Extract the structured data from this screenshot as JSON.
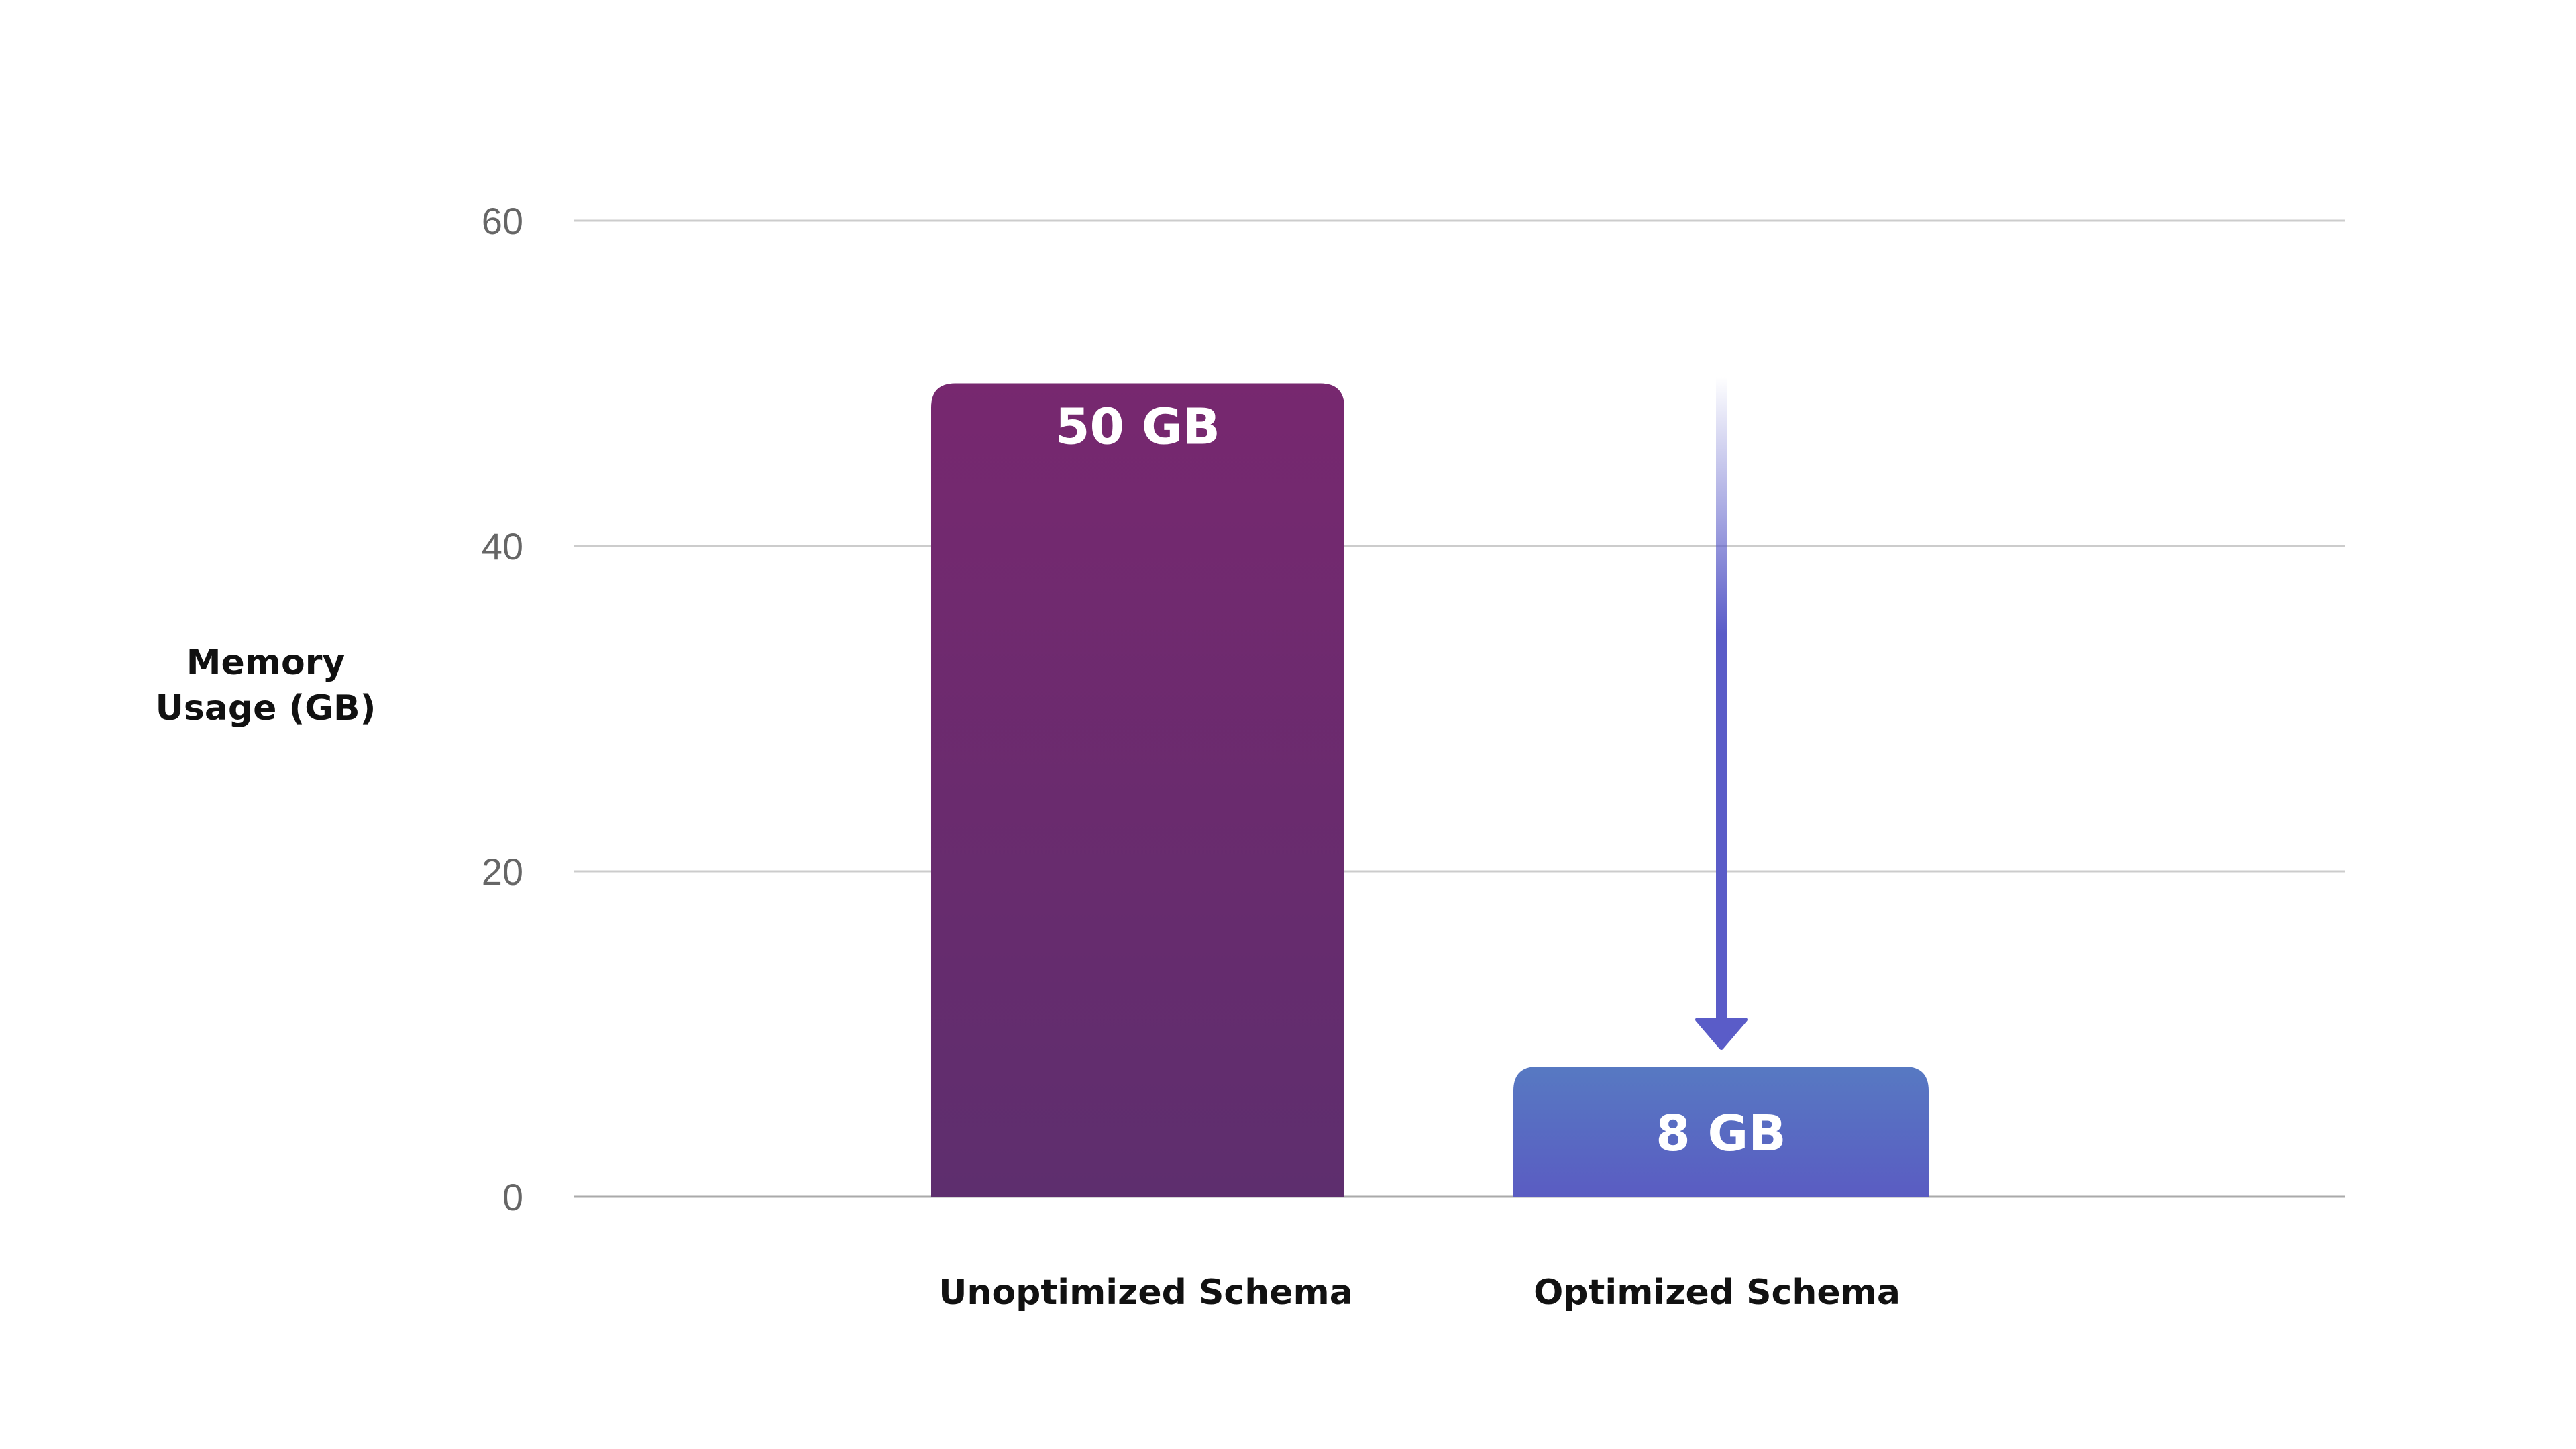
{
  "chart_data": {
    "type": "bar",
    "title": "",
    "categories": [
      "Unoptimized Schema",
      "Optimized Schema"
    ],
    "values": [
      50,
      8
    ],
    "data_labels": [
      "50 GB",
      "8 GB"
    ],
    "xlabel": "",
    "ylabel": [
      "Memory",
      "Usage (GB)"
    ],
    "ylim": [
      0,
      60
    ],
    "yticks": [
      0,
      20,
      40,
      60
    ],
    "grid": true,
    "annotation": "downward arrow from unoptimized level to optimized bar",
    "colors": {
      "bar1_top": "#77286f",
      "bar1_bottom": "#5e2e6e",
      "bar2_top": "#5779c2",
      "bar2_bottom": "#5a5cc2",
      "arrow": "#5a5cc8",
      "grid": "#cccccc"
    }
  }
}
